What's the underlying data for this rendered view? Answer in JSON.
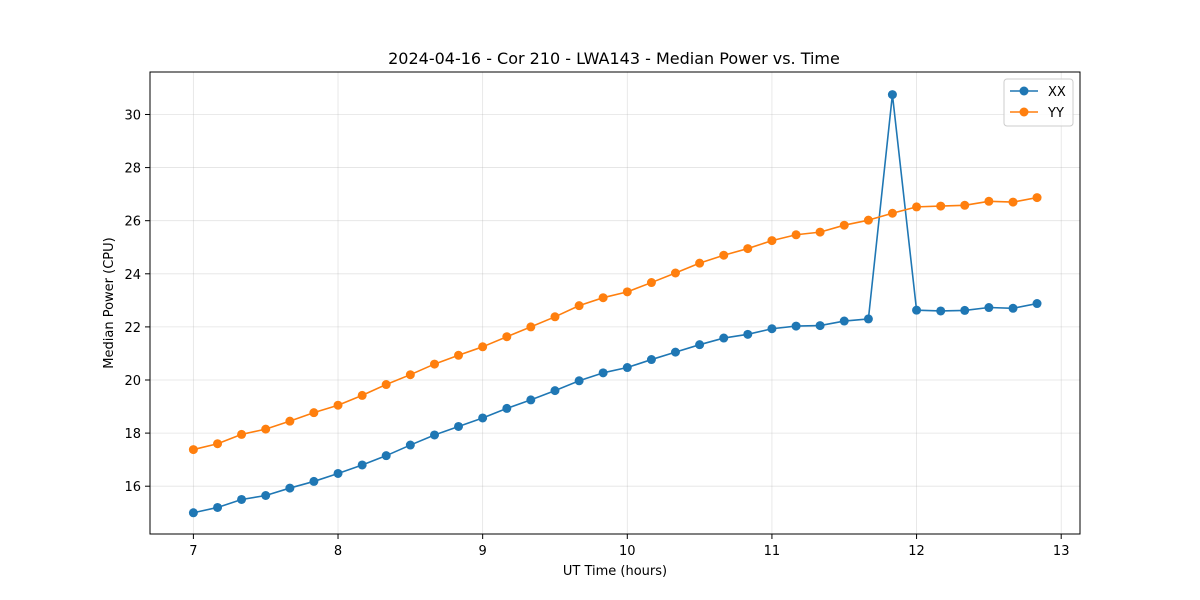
{
  "chart_data": {
    "type": "line",
    "title": "2024-04-16 - Cor 210 - LWA143 - Median Power vs. Time",
    "xlabel": "UT Time (hours)",
    "ylabel": "Median Power (CPU)",
    "xlim": [
      6.7,
      13.13
    ],
    "ylim": [
      14.2,
      31.6
    ],
    "xticks": [
      7,
      8,
      9,
      10,
      11,
      12,
      13
    ],
    "yticks": [
      16,
      18,
      20,
      22,
      24,
      26,
      28,
      30
    ],
    "grid": true,
    "legend_position": "top-right",
    "x": [
      7.0,
      7.167,
      7.333,
      7.5,
      7.667,
      7.833,
      8.0,
      8.167,
      8.333,
      8.5,
      8.667,
      8.833,
      9.0,
      9.167,
      9.333,
      9.5,
      9.667,
      9.833,
      10.0,
      10.167,
      10.333,
      10.5,
      10.667,
      10.833,
      11.0,
      11.167,
      11.333,
      11.5,
      11.667,
      11.833,
      12.0,
      12.167,
      12.333,
      12.5,
      12.667,
      12.833
    ],
    "series": [
      {
        "name": "XX",
        "color": "#1f77b4",
        "values": [
          15.0,
          15.2,
          15.5,
          15.65,
          15.93,
          16.18,
          16.48,
          16.8,
          17.15,
          17.55,
          17.93,
          18.25,
          18.57,
          18.93,
          19.25,
          19.6,
          19.97,
          20.27,
          20.47,
          20.77,
          21.05,
          21.33,
          21.58,
          21.72,
          21.93,
          22.03,
          22.05,
          22.22,
          22.3,
          30.75,
          22.63,
          22.6,
          22.62,
          22.73,
          22.7,
          22.88
        ]
      },
      {
        "name": "YY",
        "color": "#ff7f0e",
        "values": [
          17.38,
          17.6,
          17.95,
          18.15,
          18.45,
          18.77,
          19.05,
          19.42,
          19.83,
          20.2,
          20.6,
          20.93,
          21.25,
          21.63,
          22.0,
          22.38,
          22.8,
          23.1,
          23.32,
          23.67,
          24.03,
          24.4,
          24.7,
          24.95,
          25.25,
          25.47,
          25.57,
          25.83,
          26.02,
          26.28,
          26.52,
          26.55,
          26.58,
          26.73,
          26.7,
          26.87
        ]
      }
    ]
  }
}
